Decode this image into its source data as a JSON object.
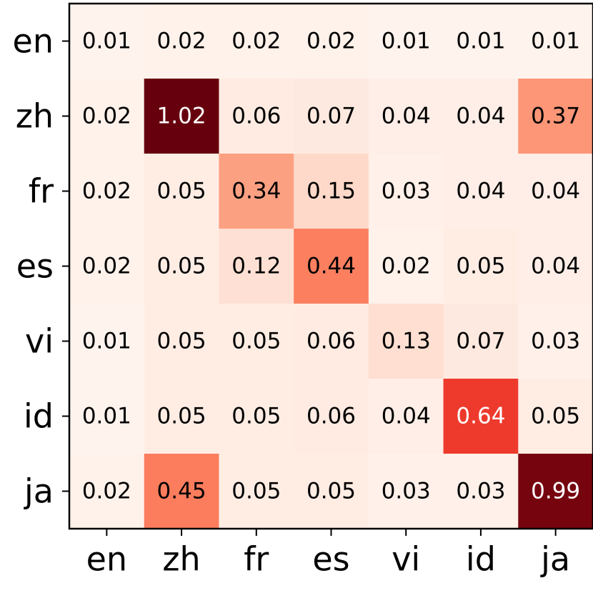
{
  "chart_data": {
    "type": "heatmap",
    "title": "",
    "xlabel": "",
    "ylabel": "",
    "x_labels": [
      "en",
      "zh",
      "fr",
      "es",
      "vi",
      "id",
      "ja"
    ],
    "y_labels": [
      "en",
      "zh",
      "fr",
      "es",
      "vi",
      "id",
      "ja"
    ],
    "values": [
      [
        0.01,
        0.02,
        0.02,
        0.02,
        0.01,
        0.01,
        0.01
      ],
      [
        0.02,
        1.02,
        0.06,
        0.07,
        0.04,
        0.04,
        0.37
      ],
      [
        0.02,
        0.05,
        0.34,
        0.15,
        0.03,
        0.04,
        0.04
      ],
      [
        0.02,
        0.05,
        0.12,
        0.44,
        0.02,
        0.05,
        0.04
      ],
      [
        0.01,
        0.05,
        0.05,
        0.06,
        0.13,
        0.07,
        0.03
      ],
      [
        0.01,
        0.05,
        0.05,
        0.06,
        0.04,
        0.64,
        0.05
      ],
      [
        0.02,
        0.45,
        0.05,
        0.05,
        0.03,
        0.03,
        0.99
      ]
    ],
    "colormap": "Reds",
    "value_range": [
      0,
      1.02
    ],
    "colorbar": false,
    "grid": false
  }
}
